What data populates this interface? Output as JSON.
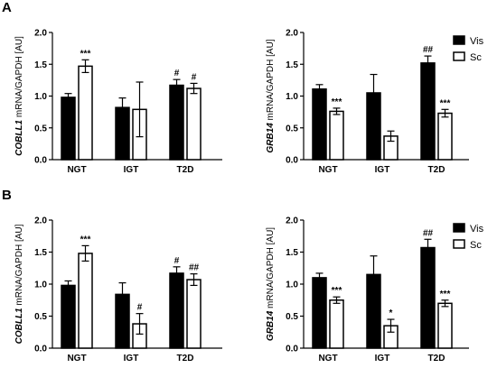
{
  "panel_labels": [
    "A",
    "B"
  ],
  "legend": {
    "vis": "Vis",
    "sc": "Sc"
  },
  "colors": {
    "vis": "#000000",
    "sc": "#ffffff",
    "axis": "#000000"
  },
  "chart_data": [
    {
      "type": "bar",
      "panel": "A",
      "gene": "COBLL1",
      "ylabel_rest": " mRNA/GAPDH  [AU]",
      "ylim": [
        0,
        2.0
      ],
      "yticks": [
        "0.0",
        "0.5",
        "1.0",
        "1.5",
        "2.0"
      ],
      "categories": [
        "NGT",
        "IGT",
        "T2D"
      ],
      "series": [
        {
          "name": "Vis",
          "values": [
            0.98,
            0.82,
            1.17
          ],
          "errors": [
            0.06,
            0.15,
            0.09
          ],
          "annotations": [
            "",
            "",
            "#"
          ]
        },
        {
          "name": "Sc",
          "values": [
            1.47,
            0.79,
            1.12
          ],
          "errors": [
            0.1,
            0.43,
            0.08
          ],
          "annotations": [
            "***",
            "",
            "#"
          ]
        }
      ],
      "legend_visible": false
    },
    {
      "type": "bar",
      "panel": "A",
      "gene": "GRB14",
      "ylabel_rest": " mRNA/GAPDH  [AU]",
      "ylim": [
        0,
        2.0
      ],
      "yticks": [
        "0.0",
        "0.5",
        "1.0",
        "1.5",
        "2.0"
      ],
      "categories": [
        "NGT",
        "IGT",
        "T2D"
      ],
      "series": [
        {
          "name": "Vis",
          "values": [
            1.11,
            1.05,
            1.52
          ],
          "errors": [
            0.07,
            0.29,
            0.11
          ],
          "annotations": [
            "",
            "",
            "##"
          ]
        },
        {
          "name": "Sc",
          "values": [
            0.76,
            0.37,
            0.73
          ],
          "errors": [
            0.05,
            0.08,
            0.06
          ],
          "annotations": [
            "***",
            "",
            "***"
          ]
        }
      ],
      "legend_visible": true,
      "legend_position": "top-right"
    },
    {
      "type": "bar",
      "panel": "B",
      "gene": "COBLL1",
      "ylabel_rest": " mRNA/GAPDH  [AU]",
      "ylim": [
        0,
        2.0
      ],
      "yticks": [
        "0.0",
        "0.5",
        "1.0",
        "1.5",
        "2.0"
      ],
      "categories": [
        "NGT",
        "IGT",
        "T2D"
      ],
      "series": [
        {
          "name": "Vis",
          "values": [
            0.98,
            0.84,
            1.17
          ],
          "errors": [
            0.07,
            0.18,
            0.1
          ],
          "annotations": [
            "",
            "",
            "#"
          ]
        },
        {
          "name": "Sc",
          "values": [
            1.48,
            0.38,
            1.07
          ],
          "errors": [
            0.12,
            0.16,
            0.09
          ],
          "annotations": [
            "***",
            "#",
            "##"
          ]
        }
      ],
      "legend_visible": false
    },
    {
      "type": "bar",
      "panel": "B",
      "gene": "GRB14",
      "ylabel_rest": " mRNA/GAPDH  [AU]",
      "ylim": [
        0,
        2.0
      ],
      "yticks": [
        "0.0",
        "0.5",
        "1.0",
        "1.5",
        "2.0"
      ],
      "categories": [
        "NGT",
        "IGT",
        "T2D"
      ],
      "series": [
        {
          "name": "Vis",
          "values": [
            1.1,
            1.15,
            1.57
          ],
          "errors": [
            0.07,
            0.29,
            0.13
          ],
          "annotations": [
            "",
            "",
            "##"
          ]
        },
        {
          "name": "Sc",
          "values": [
            0.75,
            0.35,
            0.7
          ],
          "errors": [
            0.05,
            0.1,
            0.05
          ],
          "annotations": [
            "***",
            "*",
            "***"
          ]
        }
      ],
      "legend_visible": true,
      "legend_position": "top-right"
    }
  ]
}
